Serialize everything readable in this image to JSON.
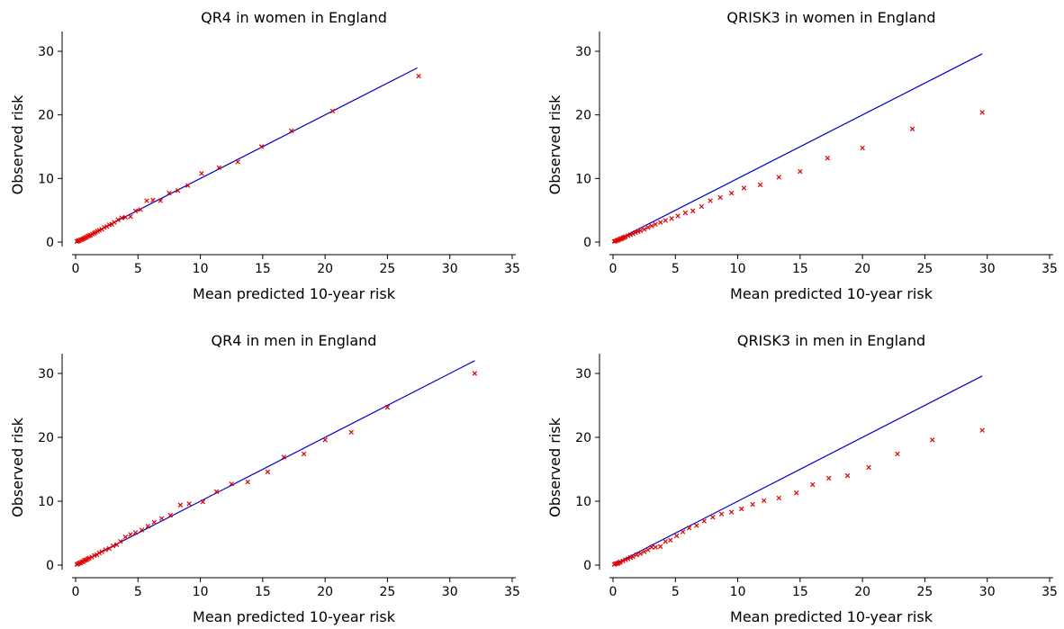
{
  "chart_data": [
    {
      "type": "scatter",
      "title": "QR4 in women in England",
      "xlabel": "Mean predicted 10-year risk",
      "ylabel": "Observed risk",
      "xlim": [
        0,
        35
      ],
      "ylim": [
        0,
        30
      ],
      "xticks": [
        "0",
        "5",
        "10",
        "15",
        "20",
        "25",
        "30",
        "35"
      ],
      "yticks": [
        "0",
        "10",
        "20",
        "30"
      ],
      "grid": false,
      "colors": {
        "line": "#0000cc",
        "points": "#dd0000"
      },
      "reference_line": {
        "x": [
          0,
          27.4
        ],
        "y": [
          0,
          27.4
        ]
      },
      "series": [
        {
          "marker": "x",
          "points": [
            [
              0.1,
              0.1
            ],
            [
              0.2,
              0.15
            ],
            [
              0.25,
              0.25
            ],
            [
              0.3,
              0.2
            ],
            [
              0.4,
              0.35
            ],
            [
              0.5,
              0.4
            ],
            [
              0.6,
              0.5
            ],
            [
              0.7,
              0.6
            ],
            [
              0.8,
              0.7
            ],
            [
              0.9,
              0.8
            ],
            [
              1.0,
              0.95
            ],
            [
              1.1,
              1.0
            ],
            [
              1.2,
              1.1
            ],
            [
              1.35,
              1.25
            ],
            [
              1.5,
              1.4
            ],
            [
              1.6,
              1.55
            ],
            [
              1.75,
              1.7
            ],
            [
              1.9,
              1.85
            ],
            [
              2.1,
              2.0
            ],
            [
              2.3,
              2.3
            ],
            [
              2.5,
              2.45
            ],
            [
              2.7,
              2.7
            ],
            [
              2.9,
              2.8
            ],
            [
              3.1,
              3.1
            ],
            [
              3.4,
              3.5
            ],
            [
              3.7,
              3.8
            ],
            [
              4.0,
              3.9
            ],
            [
              4.4,
              4.0
            ],
            [
              4.8,
              4.9
            ],
            [
              5.2,
              5.1
            ],
            [
              5.7,
              6.5
            ],
            [
              6.2,
              6.6
            ],
            [
              6.8,
              6.5
            ],
            [
              7.5,
              7.7
            ],
            [
              8.2,
              8.1
            ],
            [
              9.0,
              8.9
            ],
            [
              10.1,
              10.8
            ],
            [
              11.5,
              11.7
            ],
            [
              13.0,
              12.6
            ],
            [
              14.9,
              15.0
            ],
            [
              17.3,
              17.5
            ],
            [
              20.6,
              20.6
            ],
            [
              27.5,
              26.1
            ]
          ]
        }
      ]
    },
    {
      "type": "scatter",
      "title": "QRISK3 in women in England",
      "xlabel": "Mean predicted 10-year risk",
      "ylabel": "Observed risk",
      "xlim": [
        0,
        35
      ],
      "ylim": [
        0,
        30
      ],
      "xticks": [
        "0",
        "5",
        "10",
        "15",
        "20",
        "25",
        "30",
        "35"
      ],
      "yticks": [
        "0",
        "10",
        "20",
        "30"
      ],
      "grid": false,
      "colors": {
        "line": "#0000cc",
        "points": "#dd0000"
      },
      "reference_line": {
        "x": [
          0,
          29.6
        ],
        "y": [
          0,
          29.6
        ]
      },
      "series": [
        {
          "marker": "x",
          "points": [
            [
              0.1,
              0.1
            ],
            [
              0.2,
              0.15
            ],
            [
              0.3,
              0.25
            ],
            [
              0.4,
              0.3
            ],
            [
              0.5,
              0.4
            ],
            [
              0.6,
              0.5
            ],
            [
              0.7,
              0.55
            ],
            [
              0.8,
              0.65
            ],
            [
              0.9,
              0.75
            ],
            [
              1.0,
              0.85
            ],
            [
              1.2,
              1.0
            ],
            [
              1.4,
              1.15
            ],
            [
              1.6,
              1.3
            ],
            [
              1.8,
              1.5
            ],
            [
              2.0,
              1.65
            ],
            [
              2.2,
              1.8
            ],
            [
              2.5,
              2.0
            ],
            [
              2.8,
              2.3
            ],
            [
              3.1,
              2.55
            ],
            [
              3.4,
              2.8
            ],
            [
              3.8,
              3.1
            ],
            [
              4.2,
              3.4
            ],
            [
              4.7,
              3.7
            ],
            [
              5.2,
              4.1
            ],
            [
              5.8,
              4.6
            ],
            [
              6.4,
              4.9
            ],
            [
              7.1,
              5.6
            ],
            [
              7.8,
              6.5
            ],
            [
              8.6,
              7.0
            ],
            [
              9.5,
              7.7
            ],
            [
              10.5,
              8.5
            ],
            [
              11.8,
              9.0
            ],
            [
              13.3,
              10.2
            ],
            [
              15.0,
              11.1
            ],
            [
              17.2,
              13.2
            ],
            [
              20.0,
              14.8
            ],
            [
              24.0,
              17.8
            ],
            [
              29.6,
              20.4
            ]
          ]
        }
      ]
    },
    {
      "type": "scatter",
      "title": "QR4 in men in England",
      "xlabel": "Mean predicted 10-year risk",
      "ylabel": "Observed risk",
      "xlim": [
        0,
        35
      ],
      "ylim": [
        0,
        30
      ],
      "xticks": [
        "0",
        "5",
        "10",
        "15",
        "20",
        "25",
        "30",
        "35"
      ],
      "yticks": [
        "0",
        "10",
        "20",
        "30"
      ],
      "grid": false,
      "colors": {
        "line": "#0000cc",
        "points": "#dd0000"
      },
      "reference_line": {
        "x": [
          0,
          32.0
        ],
        "y": [
          0,
          32.0
        ]
      },
      "series": [
        {
          "marker": "x",
          "points": [
            [
              0.1,
              0.1
            ],
            [
              0.2,
              0.2
            ],
            [
              0.3,
              0.3
            ],
            [
              0.4,
              0.35
            ],
            [
              0.5,
              0.5
            ],
            [
              0.6,
              0.55
            ],
            [
              0.7,
              0.7
            ],
            [
              0.8,
              0.8
            ],
            [
              0.9,
              0.85
            ],
            [
              1.0,
              1.0
            ],
            [
              1.1,
              1.1
            ],
            [
              1.3,
              1.25
            ],
            [
              1.5,
              1.5
            ],
            [
              1.7,
              1.6
            ],
            [
              1.9,
              1.9
            ],
            [
              2.1,
              2.1
            ],
            [
              2.4,
              2.4
            ],
            [
              2.7,
              2.6
            ],
            [
              3.0,
              3.0
            ],
            [
              3.3,
              3.2
            ],
            [
              3.6,
              3.7
            ],
            [
              4.0,
              4.4
            ],
            [
              4.4,
              4.8
            ],
            [
              4.8,
              5.1
            ],
            [
              5.3,
              5.5
            ],
            [
              5.8,
              6.1
            ],
            [
              6.3,
              6.7
            ],
            [
              6.9,
              7.3
            ],
            [
              7.6,
              7.8
            ],
            [
              8.4,
              9.4
            ],
            [
              9.1,
              9.6
            ],
            [
              10.2,
              9.9
            ],
            [
              11.3,
              11.5
            ],
            [
              12.5,
              12.7
            ],
            [
              13.8,
              13.0
            ],
            [
              15.4,
              14.6
            ],
            [
              16.7,
              16.9
            ],
            [
              18.3,
              17.4
            ],
            [
              20.0,
              19.6
            ],
            [
              22.1,
              20.8
            ],
            [
              25.0,
              24.7
            ],
            [
              32.0,
              30.0
            ]
          ]
        }
      ]
    },
    {
      "type": "scatter",
      "title": "QRISK3 in men in England",
      "xlabel": "Mean predicted 10-year risk",
      "ylabel": "Observed risk",
      "xlim": [
        0,
        35
      ],
      "ylim": [
        0,
        30
      ],
      "xticks": [
        "0",
        "5",
        "10",
        "15",
        "20",
        "25",
        "30",
        "35"
      ],
      "yticks": [
        "0",
        "10",
        "20",
        "30"
      ],
      "grid": false,
      "colors": {
        "line": "#0000cc",
        "points": "#dd0000"
      },
      "reference_line": {
        "x": [
          0,
          29.6
        ],
        "y": [
          0,
          29.6
        ]
      },
      "series": [
        {
          "marker": "x",
          "points": [
            [
              0.1,
              0.1
            ],
            [
              0.2,
              0.2
            ],
            [
              0.3,
              0.25
            ],
            [
              0.4,
              0.3
            ],
            [
              0.5,
              0.4
            ],
            [
              0.6,
              0.5
            ],
            [
              0.8,
              0.65
            ],
            [
              1.0,
              0.85
            ],
            [
              1.2,
              1.0
            ],
            [
              1.4,
              1.2
            ],
            [
              1.6,
              1.3
            ],
            [
              1.9,
              1.6
            ],
            [
              2.2,
              1.8
            ],
            [
              2.5,
              2.1
            ],
            [
              2.8,
              2.4
            ],
            [
              3.1,
              2.8
            ],
            [
              3.4,
              2.8
            ],
            [
              3.8,
              2.9
            ],
            [
              4.2,
              3.7
            ],
            [
              4.6,
              3.9
            ],
            [
              5.1,
              4.6
            ],
            [
              5.6,
              5.2
            ],
            [
              6.1,
              5.8
            ],
            [
              6.7,
              6.2
            ],
            [
              7.3,
              6.9
            ],
            [
              8.0,
              7.5
            ],
            [
              8.7,
              8.0
            ],
            [
              9.5,
              8.3
            ],
            [
              10.3,
              8.8
            ],
            [
              11.2,
              9.5
            ],
            [
              12.1,
              10.1
            ],
            [
              13.3,
              10.5
            ],
            [
              14.7,
              11.3
            ],
            [
              16.0,
              12.6
            ],
            [
              17.3,
              13.6
            ],
            [
              18.8,
              14.0
            ],
            [
              20.5,
              15.3
            ],
            [
              22.8,
              17.4
            ],
            [
              25.6,
              19.6
            ],
            [
              29.6,
              21.1
            ]
          ]
        }
      ]
    }
  ]
}
